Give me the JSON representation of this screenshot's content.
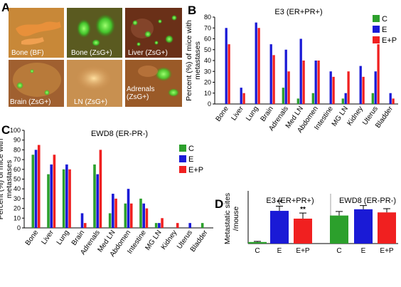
{
  "panel_labels": {
    "a": "A",
    "b": "B",
    "c": "C",
    "d": "D"
  },
  "images": [
    {
      "label": "Bone (BF)",
      "bg": "#d9a040",
      "glow": "#e07030"
    },
    {
      "label": "Bone (ZsG+)",
      "bg": "#2a2a18",
      "glow": "#5aff3a"
    },
    {
      "label": "Liver (ZsG+)",
      "bg": "#5c2a18",
      "glow": "#6aff40"
    },
    {
      "label": "Brain (ZsG+)",
      "bg": "#9a5a28",
      "glow": "#8aff50"
    },
    {
      "label": "LN (ZsG+)",
      "bg": "#c08a48",
      "glow": "#ffd080"
    },
    {
      "label": "Adrenals (ZsG+)",
      "bg": "#8a4a20",
      "glow": "#7aff50"
    }
  ],
  "colors": {
    "C": "#2ca02c",
    "E": "#1a1ad6",
    "E+P": "#f02020"
  },
  "chart_data": [
    {
      "id": "B",
      "type": "bar",
      "title": "E3 (ER+PR+)",
      "ylabel": "Percent (%) of mice with metastases",
      "ylim": [
        0,
        80
      ],
      "yticks": [
        0,
        10,
        20,
        30,
        40,
        50,
        60,
        70,
        80
      ],
      "categories": [
        "Bone",
        "Liver",
        "Lung",
        "Brain",
        "Adrenals",
        "Med LN",
        "Abdomen",
        "Intestine",
        "MG LN",
        "Kidney",
        "Uterus",
        "Bladder"
      ],
      "legend": [
        "C",
        "E",
        "E+P"
      ],
      "series": [
        {
          "name": "C",
          "values": [
            0,
            0,
            0,
            0,
            15,
            5,
            10,
            0,
            5,
            0,
            10,
            0
          ]
        },
        {
          "name": "E",
          "values": [
            70,
            15,
            75,
            55,
            50,
            60,
            40,
            30,
            10,
            35,
            30,
            10
          ]
        },
        {
          "name": "E+P",
          "values": [
            55,
            10,
            70,
            45,
            30,
            40,
            40,
            25,
            30,
            25,
            55,
            5
          ]
        }
      ]
    },
    {
      "id": "C",
      "type": "bar",
      "title": "EWD8 (ER-PR-)",
      "ylabel": "Percent (%) of mice with metastases",
      "ylim": [
        0,
        100
      ],
      "yticks": [
        0,
        10,
        20,
        30,
        40,
        50,
        60,
        70,
        80,
        90,
        100
      ],
      "categories": [
        "Bone",
        "Liver",
        "Lung",
        "Brain",
        "Adrenals",
        "Med LN",
        "Abdomen",
        "Intestine",
        "MG LN",
        "Kidney",
        "Uterus",
        "Bladder"
      ],
      "legend": [
        "C",
        "E",
        "E+P"
      ],
      "series": [
        {
          "name": "C",
          "values": [
            75,
            55,
            60,
            0,
            65,
            15,
            25,
            30,
            5,
            0,
            0,
            5
          ]
        },
        {
          "name": "E",
          "values": [
            80,
            65,
            65,
            15,
            55,
            35,
            40,
            25,
            5,
            0,
            5,
            0
          ]
        },
        {
          "name": "E+P",
          "values": [
            85,
            75,
            60,
            5,
            80,
            30,
            25,
            20,
            10,
            5,
            0,
            0
          ]
        }
      ]
    },
    {
      "id": "D",
      "type": "bar",
      "ylabel": "Metastatic sites /mouse",
      "groups": [
        {
          "title": "E3 (ER+PR+)",
          "categories": [
            "C",
            "E",
            "E+P"
          ],
          "values": [
            0.5,
            10.5,
            8
          ],
          "errors": [
            0.2,
            1.5,
            1.8
          ],
          "sig": [
            "",
            "**",
            "**"
          ]
        },
        {
          "title": "EWD8 (ER-PR-)",
          "categories": [
            "C",
            "E",
            "E+P"
          ],
          "values": [
            9,
            11,
            10
          ],
          "errors": [
            1.3,
            1.2,
            1.2
          ],
          "sig": [
            "",
            "",
            ""
          ]
        }
      ],
      "ylim": [
        0,
        16
      ]
    }
  ]
}
